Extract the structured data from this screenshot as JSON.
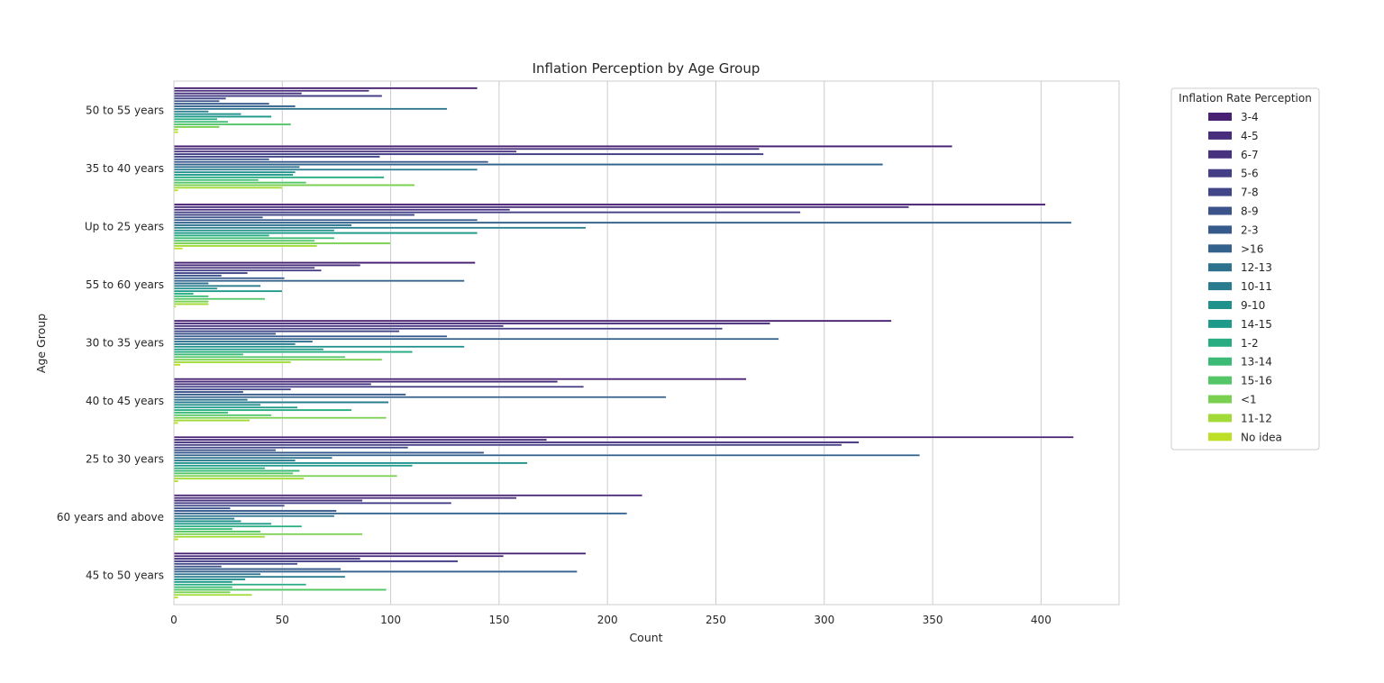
{
  "chart_data": {
    "type": "bar",
    "orientation": "horizontal",
    "title": "Inflation Perception by Age Group",
    "xlabel": "Count",
    "ylabel": "Age Group",
    "xlim": [
      0,
      436
    ],
    "xticks": [
      0,
      50,
      100,
      150,
      200,
      250,
      300,
      350,
      400
    ],
    "grid": true,
    "legend_title": "Inflation Rate Perception",
    "legend_position": "outside-top-right",
    "categories": [
      "50 to 55 years",
      "35 to 40 years",
      "Up to 25 years",
      "55 to 60 years",
      "30 to 35 years",
      "40 to 45 years",
      "25 to 30 years",
      "60 years and above",
      "45 to 50 years"
    ],
    "series": [
      {
        "name": "3-4",
        "color": "#482173",
        "values": [
          140,
          359,
          402,
          139,
          331,
          264,
          415,
          216,
          190
        ]
      },
      {
        "name": "4-5",
        "color": "#472d7b",
        "values": [
          90,
          270,
          339,
          86,
          275,
          177,
          172,
          158,
          152
        ]
      },
      {
        "name": "6-7",
        "color": "#46327e",
        "values": [
          59,
          158,
          155,
          65,
          152,
          91,
          316,
          87,
          86
        ]
      },
      {
        "name": "5-6",
        "color": "#433e85",
        "values": [
          96,
          272,
          289,
          68,
          253,
          189,
          308,
          128,
          131
        ]
      },
      {
        "name": "7-8",
        "color": "#404688",
        "values": [
          24,
          95,
          111,
          34,
          104,
          54,
          108,
          51,
          57
        ]
      },
      {
        "name": "8-9",
        "color": "#3b528b",
        "values": [
          21,
          44,
          41,
          22,
          47,
          32,
          47,
          26,
          22
        ]
      },
      {
        "name": "2-3",
        "color": "#375a8c",
        "values": [
          44,
          145,
          140,
          51,
          126,
          107,
          143,
          75,
          77
        ]
      },
      {
        "name": ">16",
        "color": "#33638d",
        "values": [
          56,
          327,
          414,
          134,
          279,
          227,
          344,
          209,
          186
        ]
      },
      {
        "name": "12-13",
        "color": "#2c728e",
        "values": [
          126,
          58,
          82,
          16,
          64,
          34,
          73,
          74,
          40
        ]
      },
      {
        "name": "10-11",
        "color": "#287c8e",
        "values": [
          16,
          140,
          190,
          40,
          56,
          99,
          56,
          28,
          79
        ]
      },
      {
        "name": "9-10",
        "color": "#21918c",
        "values": [
          31,
          56,
          74,
          20,
          134,
          40,
          163,
          31,
          33
        ]
      },
      {
        "name": "14-15",
        "color": "#1f9a8a",
        "values": [
          45,
          55,
          140,
          50,
          69,
          57,
          110,
          45,
          27
        ]
      },
      {
        "name": "1-2",
        "color": "#27ad81",
        "values": [
          20,
          97,
          44,
          9,
          110,
          82,
          42,
          59,
          61
        ]
      },
      {
        "name": "13-14",
        "color": "#3bbb75",
        "values": [
          25,
          39,
          74,
          16,
          32,
          25,
          58,
          27,
          27
        ]
      },
      {
        "name": "15-16",
        "color": "#55c667",
        "values": [
          54,
          61,
          65,
          42,
          79,
          45,
          55,
          40,
          98
        ]
      },
      {
        "name": "<1",
        "color": "#7ad151",
        "values": [
          21,
          111,
          100,
          16,
          96,
          98,
          103,
          87,
          26
        ]
      },
      {
        "name": "11-12",
        "color": "#a2da37",
        "values": [
          2,
          50,
          66,
          16,
          54,
          35,
          60,
          42,
          36
        ]
      },
      {
        "name": "No idea",
        "color": "#bddf26",
        "values": [
          2,
          2,
          4,
          1,
          3,
          2,
          2,
          2,
          2
        ]
      }
    ]
  }
}
